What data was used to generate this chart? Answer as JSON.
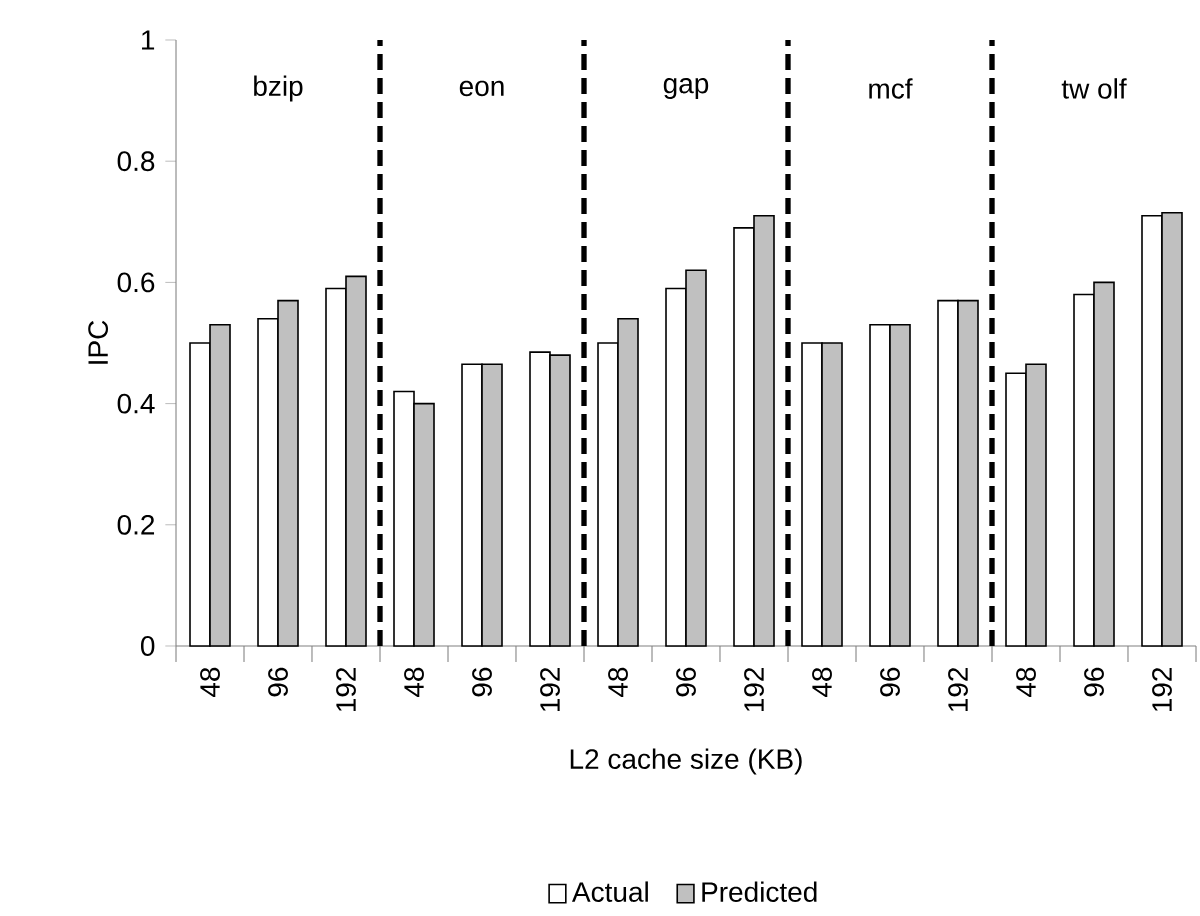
{
  "chart_data": {
    "type": "bar",
    "xlabel": "L2 cache size (KB)",
    "ylabel": "IPC",
    "categories": [
      "48",
      "96",
      "192",
      "48",
      "96",
      "192",
      "48",
      "96",
      "192",
      "48",
      "96",
      "192",
      "48",
      "96",
      "192"
    ],
    "series": [
      {
        "name": "Actual",
        "color": "#ffffff",
        "values": [
          0.5,
          0.54,
          0.59,
          0.42,
          0.465,
          0.485,
          0.5,
          0.59,
          0.69,
          0.5,
          0.53,
          0.57,
          0.45,
          0.58,
          0.71
        ]
      },
      {
        "name": "Predicted",
        "color": "#c0c0c0",
        "values": [
          0.53,
          0.57,
          0.61,
          0.4,
          0.465,
          0.48,
          0.54,
          0.62,
          0.71,
          0.5,
          0.53,
          0.57,
          0.465,
          0.6,
          0.715
        ]
      }
    ],
    "annotations": [
      "bzip",
      "eon",
      "gap",
      "mcf",
      "tw olf"
    ],
    "ylim": [
      0,
      1
    ],
    "yticks": [
      0,
      0.2,
      0.4,
      0.6,
      0.8,
      1
    ],
    "grid": false,
    "legend": "bottom"
  }
}
